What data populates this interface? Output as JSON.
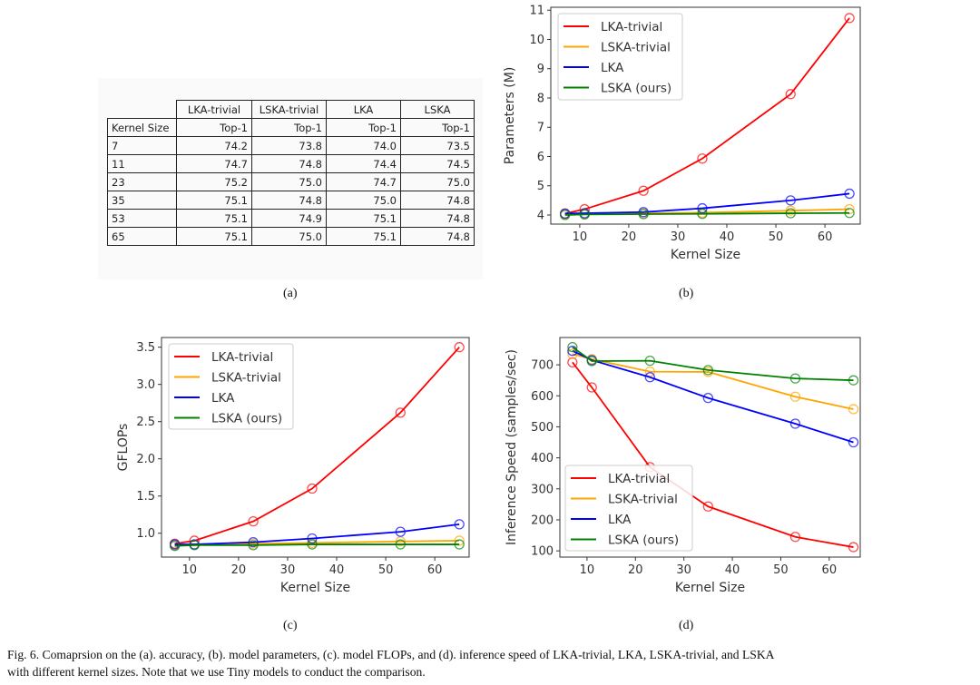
{
  "table": {
    "group_headers": [
      "LKA-trivial",
      "LSKA-trivial",
      "LKA",
      "LSKA"
    ],
    "sub_headers": [
      "Kernel Size",
      "Top-1",
      "Top-1",
      "Top-1",
      "Top-1"
    ],
    "rows": [
      [
        "7",
        "74.2",
        "73.8",
        "74.0",
        "73.5"
      ],
      [
        "11",
        "74.7",
        "74.8",
        "74.4",
        "74.5"
      ],
      [
        "23",
        "75.2",
        "75.0",
        "74.7",
        "75.0"
      ],
      [
        "35",
        "75.1",
        "74.8",
        "75.0",
        "74.8"
      ],
      [
        "53",
        "75.1",
        "74.9",
        "75.1",
        "74.8"
      ],
      [
        "65",
        "75.1",
        "75.0",
        "75.1",
        "74.8"
      ]
    ]
  },
  "subcaptions": [
    "(a)",
    "(b)",
    "(c)",
    "(d)"
  ],
  "caption": {
    "line1": "Fig. 6.  Comaprsion on the (a). accuracy, (b). model parameters, (c). model FLOPs, and (d). inference speed of LKA-trivial, LKA, LSKA-trivial, and LSKA",
    "line2": "with different kernel sizes. Note that we use Tiny models to conduct the comparison."
  },
  "chart_data": [
    {
      "id": "b",
      "type": "line",
      "xlabel": "Kernel Size",
      "ylabel": "Parameters (M)",
      "x": [
        7,
        11,
        23,
        35,
        53,
        65
      ],
      "xlim": [
        4.1,
        67.2
      ],
      "ylim": [
        3.69,
        11.1
      ],
      "xticks": [
        10,
        20,
        30,
        40,
        50,
        60
      ],
      "yticks": [
        4,
        5,
        6,
        7,
        8,
        9,
        10,
        11
      ],
      "legend": "top-left",
      "series": [
        {
          "name": "LKA-trivial",
          "color": "#ff0000",
          "values": [
            4.05,
            4.2,
            4.83,
            5.93,
            8.13,
            10.73
          ]
        },
        {
          "name": "LSKA-trivial",
          "color": "#ffa500",
          "values": [
            4.02,
            4.03,
            4.06,
            4.08,
            4.15,
            4.2
          ]
        },
        {
          "name": "LKA",
          "color": "#0000ff",
          "values": [
            4.05,
            4.06,
            4.1,
            4.23,
            4.5,
            4.73
          ]
        },
        {
          "name": "LSKA (ours)",
          "color": "#008000",
          "values": [
            4.0,
            4.02,
            4.03,
            4.04,
            4.06,
            4.07
          ]
        }
      ]
    },
    {
      "id": "c",
      "type": "line",
      "xlabel": "Kernel Size",
      "ylabel": "GFLOPs",
      "x": [
        7,
        11,
        23,
        35,
        53,
        65
      ],
      "xlim": [
        4.3,
        67.0
      ],
      "ylim": [
        0.68,
        3.63
      ],
      "xticks": [
        10,
        20,
        30,
        40,
        50,
        60
      ],
      "yticks": [
        1.0,
        1.5,
        2.0,
        2.5,
        3.0,
        3.5
      ],
      "ytick_labels": [
        "1.0",
        "1.5",
        "2.0",
        "2.5",
        "3.0",
        "3.5"
      ],
      "legend": "top-left",
      "series": [
        {
          "name": "LKA-trivial",
          "color": "#ff0000",
          "values": [
            0.86,
            0.9,
            1.16,
            1.6,
            2.62,
            3.5
          ]
        },
        {
          "name": "LSKA-trivial",
          "color": "#ffa500",
          "values": [
            0.84,
            0.85,
            0.86,
            0.87,
            0.89,
            0.9
          ]
        },
        {
          "name": "LKA",
          "color": "#0000ff",
          "values": [
            0.85,
            0.85,
            0.88,
            0.93,
            1.02,
            1.12
          ]
        },
        {
          "name": "LSKA (ours)",
          "color": "#008000",
          "values": [
            0.83,
            0.84,
            0.84,
            0.85,
            0.85,
            0.85
          ]
        }
      ]
    },
    {
      "id": "d",
      "type": "line",
      "xlabel": "Kernel Size",
      "ylabel": "Inference Speed (samples/sec)",
      "x": [
        7,
        11,
        23,
        35,
        53,
        65
      ],
      "xlim": [
        4.4,
        66.4
      ],
      "ylim": [
        80,
        788
      ],
      "xticks": [
        10,
        20,
        30,
        40,
        50,
        60
      ],
      "yticks": [
        100,
        200,
        300,
        400,
        500,
        600,
        700
      ],
      "legend": "lower-left",
      "series": [
        {
          "name": "LKA-trivial",
          "color": "#ff0000",
          "values": [
            708,
            627,
            370,
            243,
            145,
            112
          ]
        },
        {
          "name": "LSKA-trivial",
          "color": "#ffa500",
          "values": [
            735,
            718,
            678,
            677,
            597,
            557
          ]
        },
        {
          "name": "LKA",
          "color": "#0000ff",
          "values": [
            745,
            715,
            660,
            593,
            510,
            450
          ]
        },
        {
          "name": "LSKA (ours)",
          "color": "#008000",
          "values": [
            757,
            712,
            713,
            683,
            656,
            650
          ]
        }
      ]
    }
  ]
}
